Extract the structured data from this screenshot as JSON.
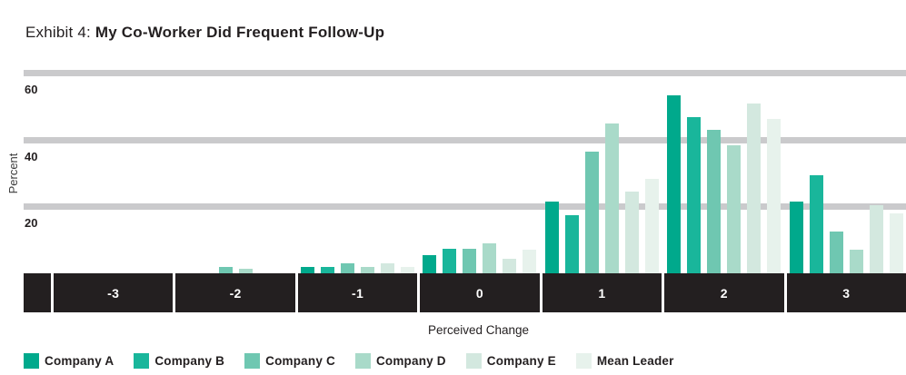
{
  "title": {
    "prefix": "Exhibit 4: ",
    "main": "My Co-Worker Did Frequent Follow-Up"
  },
  "chart_data": {
    "type": "bar",
    "title": "Exhibit 4: My Co-Worker Did Frequent Follow-Up",
    "xlabel": "Perceived Change",
    "ylabel": "Percent",
    "ylim": [
      0,
      60
    ],
    "yticks": [
      60,
      40,
      20
    ],
    "grid": "horizontal-thick-gray",
    "legend_position": "bottom-left",
    "categories": [
      "-3",
      "-2",
      "-1",
      "0",
      "1",
      "2",
      "3"
    ],
    "series": [
      {
        "name": "Company A",
        "color": "#00a98c",
        "values": [
          0,
          0,
          2,
          5.5,
          21.5,
          53.5,
          21.5
        ]
      },
      {
        "name": "Company B",
        "color": "#19b69b",
        "values": [
          0,
          0,
          2,
          7.5,
          17.5,
          47,
          29.5
        ]
      },
      {
        "name": "Company C",
        "color": "#6fc7b1",
        "values": [
          0,
          2,
          3,
          7.5,
          36.5,
          43,
          12.5
        ]
      },
      {
        "name": "Company D",
        "color": "#a9dac9",
        "values": [
          0,
          1.5,
          2,
          9,
          45,
          38.5,
          7
        ]
      },
      {
        "name": "Company E",
        "color": "#d3e8df",
        "values": [
          0,
          0,
          3,
          4.5,
          24.5,
          51,
          20.5
        ]
      },
      {
        "name": "Mean Leader",
        "color": "#e7f2ec",
        "values": [
          0,
          0,
          2,
          7,
          28.5,
          46.5,
          18
        ]
      }
    ]
  },
  "colors": {
    "axis_band": "#231f20",
    "band_label": "#ffffff",
    "gridline": "#cacacc",
    "text": "#231f20"
  }
}
